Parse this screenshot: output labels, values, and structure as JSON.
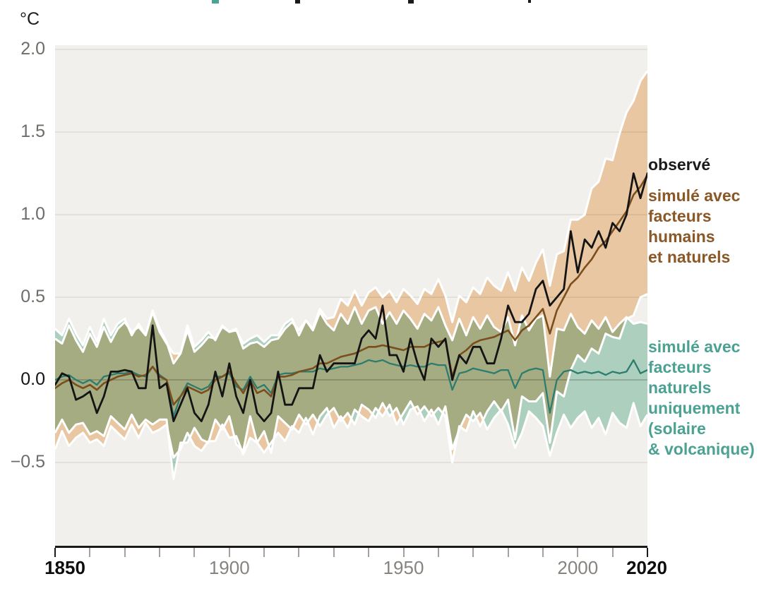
{
  "unit_label": "°C",
  "legend": {
    "observed": {
      "label": "observé",
      "color": "#1a1a1a"
    },
    "human": {
      "color": "#8a5827",
      "lines": [
        "simulé avec",
        "facteurs",
        "humains",
        "et naturels"
      ]
    },
    "natural": {
      "color": "#4ba292",
      "lines": [
        "simulé avec",
        "facteurs",
        "naturels",
        "uniquement",
        "(solaire",
        "& volcanique)"
      ]
    }
  },
  "axes": {
    "unit": "°C",
    "y_ticks": [
      "2.0",
      "1.5",
      "1.0",
      "0.5",
      "0.0",
      "−0.5"
    ],
    "y_values": [
      2.0,
      1.5,
      1.0,
      0.5,
      0.0,
      -0.5
    ],
    "x_labels": [
      {
        "label": "1850",
        "year": 1850,
        "bold": true
      },
      {
        "label": "1900",
        "year": 1900,
        "bold": false
      },
      {
        "label": "1950",
        "year": 1950,
        "bold": false
      },
      {
        "label": "2000",
        "year": 2000,
        "bold": false
      },
      {
        "label": "2020",
        "year": 2020,
        "bold": true
      }
    ],
    "x_tick_step": 10
  },
  "colors": {
    "plot_bg": "#f2f0ed",
    "grid": "#dcd9d4",
    "grid_zero": "#c1bdb7",
    "axis": "#1a1a1a",
    "tick_minor": "#a5a29d",
    "tick_edge": "#1a1a1a",
    "band_edge": "#ffffff",
    "title_fragment_teal": "#4ea492",
    "title_fragment_dark": "#1a1a1a"
  },
  "chart_data": {
    "type": "line",
    "title": "",
    "xlabel": "",
    "ylabel": "°C",
    "legend_position": "right",
    "grid": true,
    "x_start": 1850,
    "x_step": 2,
    "x_end": 2020,
    "x_range": [
      1850,
      2020
    ],
    "ylim": [
      -1.008,
      2.026
    ],
    "y_gridlines": [
      2.0,
      1.5,
      1.0,
      0.5,
      0.0,
      -0.5
    ],
    "series": [
      {
        "name": "observé",
        "color": "#141414",
        "stroke_width": 2.8,
        "values": [
          -0.03,
          0.04,
          0.02,
          -0.12,
          -0.1,
          -0.07,
          -0.2,
          -0.1,
          0.05,
          0.05,
          0.06,
          0.05,
          -0.05,
          -0.05,
          0.33,
          -0.05,
          -0.02,
          -0.25,
          -0.15,
          -0.05,
          -0.2,
          -0.25,
          -0.15,
          0.05,
          -0.1,
          0.1,
          -0.1,
          -0.2,
          0.0,
          -0.2,
          -0.25,
          -0.2,
          0.05,
          -0.15,
          -0.15,
          -0.05,
          -0.05,
          -0.05,
          0.15,
          0.05,
          0.1,
          0.1,
          0.1,
          0.1,
          0.25,
          0.3,
          0.25,
          0.45,
          0.15,
          0.15,
          0.05,
          0.25,
          0.1,
          0.0,
          0.25,
          0.2,
          0.25,
          0.0,
          0.15,
          0.1,
          0.2,
          0.2,
          0.1,
          0.1,
          0.25,
          0.45,
          0.35,
          0.35,
          0.4,
          0.55,
          0.6,
          0.45,
          0.5,
          0.55,
          0.9,
          0.65,
          0.85,
          0.8,
          0.9,
          0.8,
          0.95,
          0.9,
          1.0,
          1.25,
          1.1,
          1.25
        ]
      },
      {
        "name": "simulé avec facteurs humains et naturels",
        "color": "#7a4e1d",
        "stroke_width": 2.6,
        "values": [
          -0.05,
          -0.02,
          0.0,
          -0.03,
          -0.05,
          -0.03,
          -0.06,
          -0.02,
          0.0,
          0.02,
          0.03,
          0.04,
          0.02,
          0.03,
          0.08,
          0.02,
          0.0,
          -0.15,
          -0.1,
          -0.04,
          -0.06,
          -0.08,
          -0.06,
          0.0,
          0.02,
          0.05,
          -0.02,
          -0.08,
          0.0,
          -0.08,
          -0.06,
          -0.1,
          0.02,
          0.02,
          0.03,
          0.05,
          0.06,
          0.07,
          0.1,
          0.1,
          0.12,
          0.14,
          0.15,
          0.16,
          0.18,
          0.2,
          0.2,
          0.21,
          0.2,
          0.19,
          0.18,
          0.2,
          0.2,
          0.2,
          0.22,
          0.23,
          0.24,
          0.02,
          0.15,
          0.18,
          0.22,
          0.24,
          0.25,
          0.26,
          0.28,
          0.3,
          0.24,
          0.3,
          0.33,
          0.38,
          0.43,
          0.28,
          0.42,
          0.5,
          0.58,
          0.62,
          0.68,
          0.73,
          0.8,
          0.84,
          0.9,
          0.96,
          1.02,
          1.12,
          1.17,
          1.24
        ]
      },
      {
        "name": "simulé avec facteurs naturels uniquement (solaire & volcanique)",
        "color": "#2d7c6e",
        "stroke_width": 2.3,
        "values": [
          0.0,
          0.02,
          0.03,
          0.0,
          -0.02,
          0.0,
          -0.03,
          0.02,
          0.03,
          0.04,
          0.04,
          0.05,
          0.03,
          0.02,
          0.08,
          0.03,
          0.0,
          -0.22,
          -0.1,
          -0.02,
          -0.04,
          -0.06,
          -0.04,
          0.02,
          0.02,
          0.04,
          -0.04,
          -0.06,
          0.02,
          -0.05,
          -0.03,
          -0.08,
          0.03,
          0.04,
          0.04,
          0.05,
          0.05,
          0.05,
          0.07,
          0.06,
          0.07,
          0.08,
          0.08,
          0.09,
          0.1,
          0.12,
          0.11,
          0.12,
          0.1,
          0.09,
          0.08,
          0.09,
          0.08,
          0.08,
          0.1,
          0.09,
          0.09,
          -0.06,
          0.04,
          0.05,
          0.07,
          0.06,
          0.05,
          0.04,
          0.06,
          0.06,
          -0.05,
          0.04,
          0.06,
          0.07,
          0.06,
          -0.2,
          0.0,
          0.05,
          0.06,
          0.04,
          0.05,
          0.04,
          0.05,
          0.03,
          0.05,
          0.04,
          0.05,
          0.12,
          0.04,
          0.06
        ]
      }
    ],
    "bands": [
      {
        "name": "human_natural_range",
        "fill": "#f5d4ae",
        "upper": [
          0.25,
          0.22,
          0.33,
          0.24,
          0.17,
          0.28,
          0.2,
          0.32,
          0.23,
          0.31,
          0.35,
          0.29,
          0.32,
          0.27,
          0.41,
          0.29,
          0.22,
          0.16,
          0.16,
          0.3,
          0.17,
          0.21,
          0.26,
          0.25,
          0.32,
          0.29,
          0.31,
          0.19,
          0.22,
          0.23,
          0.2,
          0.24,
          0.25,
          0.31,
          0.35,
          0.3,
          0.36,
          0.31,
          0.43,
          0.37,
          0.38,
          0.49,
          0.45,
          0.54,
          0.45,
          0.53,
          0.56,
          0.5,
          0.54,
          0.47,
          0.55,
          0.51,
          0.46,
          0.55,
          0.52,
          0.61,
          0.51,
          0.35,
          0.51,
          0.47,
          0.56,
          0.52,
          0.62,
          0.57,
          0.54,
          0.65,
          0.54,
          0.68,
          0.6,
          0.71,
          0.79,
          0.57,
          0.76,
          0.78,
          0.97,
          0.97,
          1.0,
          1.16,
          1.2,
          1.34,
          1.33,
          1.49,
          1.62,
          1.69,
          1.81,
          1.87
        ],
        "lower": [
          -0.42,
          -0.31,
          -0.4,
          -0.35,
          -0.32,
          -0.38,
          -0.36,
          -0.4,
          -0.28,
          -0.32,
          -0.36,
          -0.27,
          -0.35,
          -0.26,
          -0.32,
          -0.3,
          -0.27,
          -0.47,
          -0.42,
          -0.32,
          -0.4,
          -0.43,
          -0.37,
          -0.37,
          -0.27,
          -0.35,
          -0.34,
          -0.45,
          -0.35,
          -0.38,
          -0.44,
          -0.38,
          -0.32,
          -0.37,
          -0.28,
          -0.32,
          -0.23,
          -0.33,
          -0.22,
          -0.17,
          -0.29,
          -0.22,
          -0.29,
          -0.18,
          -0.22,
          -0.25,
          -0.17,
          -0.22,
          -0.15,
          -0.27,
          -0.2,
          -0.13,
          -0.21,
          -0.16,
          -0.22,
          -0.17,
          -0.22,
          -0.5,
          -0.28,
          -0.31,
          -0.19,
          -0.28,
          -0.19,
          -0.13,
          -0.19,
          -0.12,
          -0.36,
          -0.1,
          -0.13,
          -0.13,
          -0.08,
          -0.38,
          -0.07,
          -0.1,
          0.06,
          0.15,
          0.11,
          0.19,
          0.16,
          0.28,
          0.26,
          0.25,
          0.37,
          0.39,
          0.5,
          0.52
        ]
      },
      {
        "name": "natural_only_range",
        "fill": "#b5dccd",
        "upper": [
          0.31,
          0.27,
          0.37,
          0.28,
          0.21,
          0.32,
          0.23,
          0.37,
          0.27,
          0.34,
          0.37,
          0.27,
          0.34,
          0.27,
          0.42,
          0.31,
          0.23,
          0.1,
          0.16,
          0.33,
          0.2,
          0.24,
          0.29,
          0.24,
          0.33,
          0.29,
          0.3,
          0.22,
          0.25,
          0.27,
          0.23,
          0.27,
          0.27,
          0.34,
          0.37,
          0.27,
          0.36,
          0.3,
          0.41,
          0.34,
          0.3,
          0.4,
          0.34,
          0.44,
          0.34,
          0.42,
          0.44,
          0.34,
          0.41,
          0.34,
          0.42,
          0.37,
          0.31,
          0.4,
          0.36,
          0.44,
          0.33,
          0.24,
          0.37,
          0.27,
          0.38,
          0.31,
          0.39,
          0.32,
          0.29,
          0.38,
          0.21,
          0.39,
          0.3,
          0.37,
          0.39,
          0.02,
          0.31,
          0.3,
          0.4,
          0.32,
          0.28,
          0.36,
          0.31,
          0.38,
          0.29,
          0.34,
          0.38,
          0.34,
          0.35,
          0.34
        ],
        "lower": [
          -0.32,
          -0.24,
          -0.32,
          -0.27,
          -0.26,
          -0.33,
          -0.31,
          -0.34,
          -0.22,
          -0.26,
          -0.3,
          -0.21,
          -0.29,
          -0.24,
          -0.27,
          -0.24,
          -0.24,
          -0.6,
          -0.38,
          -0.38,
          -0.29,
          -0.36,
          -0.38,
          -0.24,
          -0.3,
          -0.22,
          -0.39,
          -0.43,
          -0.22,
          -0.38,
          -0.31,
          -0.44,
          -0.22,
          -0.26,
          -0.3,
          -0.21,
          -0.27,
          -0.21,
          -0.28,
          -0.21,
          -0.17,
          -0.25,
          -0.2,
          -0.27,
          -0.15,
          -0.18,
          -0.23,
          -0.14,
          -0.22,
          -0.17,
          -0.27,
          -0.18,
          -0.16,
          -0.25,
          -0.18,
          -0.27,
          -0.16,
          -0.42,
          -0.3,
          -0.21,
          -0.25,
          -0.2,
          -0.3,
          -0.23,
          -0.18,
          -0.27,
          -0.41,
          -0.32,
          -0.19,
          -0.23,
          -0.28,
          -0.46,
          -0.32,
          -0.21,
          -0.29,
          -0.23,
          -0.19,
          -0.29,
          -0.23,
          -0.33,
          -0.2,
          -0.26,
          -0.29,
          -0.14,
          -0.28,
          -0.21
        ]
      }
    ]
  }
}
